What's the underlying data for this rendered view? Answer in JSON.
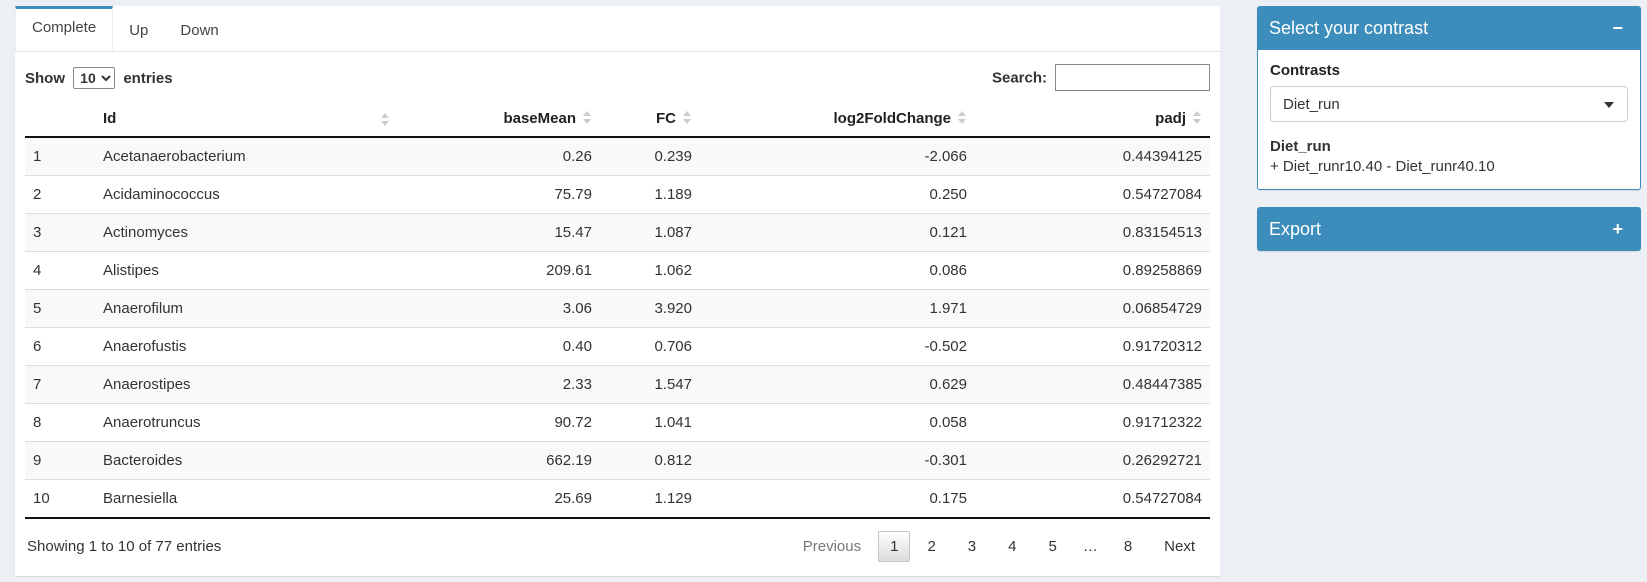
{
  "colors": {
    "primary": "#3c8dbc",
    "page_bg": "#ecf0f5",
    "stripe": "#f9f9f9"
  },
  "tabs": [
    {
      "label": "Complete",
      "active": true
    },
    {
      "label": "Up",
      "active": false
    },
    {
      "label": "Down",
      "active": false
    }
  ],
  "table_controls": {
    "show_label": "Show",
    "page_length": "10",
    "entries_label": "entries",
    "search_label": "Search:",
    "search_value": ""
  },
  "table": {
    "columns": [
      "Id",
      "baseMean",
      "FC",
      "log2FoldChange",
      "padj"
    ],
    "rows": [
      {
        "n": "1",
        "id": "Acetanaerobacterium",
        "basemean": "0.26",
        "fc": "0.239",
        "log2fc": "-2.066",
        "padj": "0.44394125"
      },
      {
        "n": "2",
        "id": "Acidaminococcus",
        "basemean": "75.79",
        "fc": "1.189",
        "log2fc": "0.250",
        "padj": "0.54727084"
      },
      {
        "n": "3",
        "id": "Actinomyces",
        "basemean": "15.47",
        "fc": "1.087",
        "log2fc": "0.121",
        "padj": "0.83154513"
      },
      {
        "n": "4",
        "id": "Alistipes",
        "basemean": "209.61",
        "fc": "1.062",
        "log2fc": "0.086",
        "padj": "0.89258869"
      },
      {
        "n": "5",
        "id": "Anaerofilum",
        "basemean": "3.06",
        "fc": "3.920",
        "log2fc": "1.971",
        "padj": "0.06854729"
      },
      {
        "n": "6",
        "id": "Anaerofustis",
        "basemean": "0.40",
        "fc": "0.706",
        "log2fc": "-0.502",
        "padj": "0.91720312"
      },
      {
        "n": "7",
        "id": "Anaerostipes",
        "basemean": "2.33",
        "fc": "1.547",
        "log2fc": "0.629",
        "padj": "0.48447385"
      },
      {
        "n": "8",
        "id": "Anaerotruncus",
        "basemean": "90.72",
        "fc": "1.041",
        "log2fc": "0.058",
        "padj": "0.91712322"
      },
      {
        "n": "9",
        "id": "Bacteroides",
        "basemean": "662.19",
        "fc": "0.812",
        "log2fc": "-0.301",
        "padj": "0.26292721"
      },
      {
        "n": "10",
        "id": "Barnesiella",
        "basemean": "25.69",
        "fc": "1.129",
        "log2fc": "0.175",
        "padj": "0.54727084"
      }
    ]
  },
  "footer": {
    "info": "Showing 1 to 10 of 77 entries",
    "active_page": "1",
    "pagination": [
      "Previous",
      "1",
      "2",
      "3",
      "4",
      "5",
      "…",
      "8",
      "Next"
    ]
  },
  "contrast_panel": {
    "title": "Select your contrast",
    "collapse_icon": "−",
    "contrasts_label": "Contrasts",
    "selected_contrast": "Diet_run",
    "contrast_name": "Diet_run",
    "contrast_formula": "+ Diet_runr10.40 - Diet_runr40.10"
  },
  "export_panel": {
    "title": "Export",
    "collapse_icon": "+"
  }
}
